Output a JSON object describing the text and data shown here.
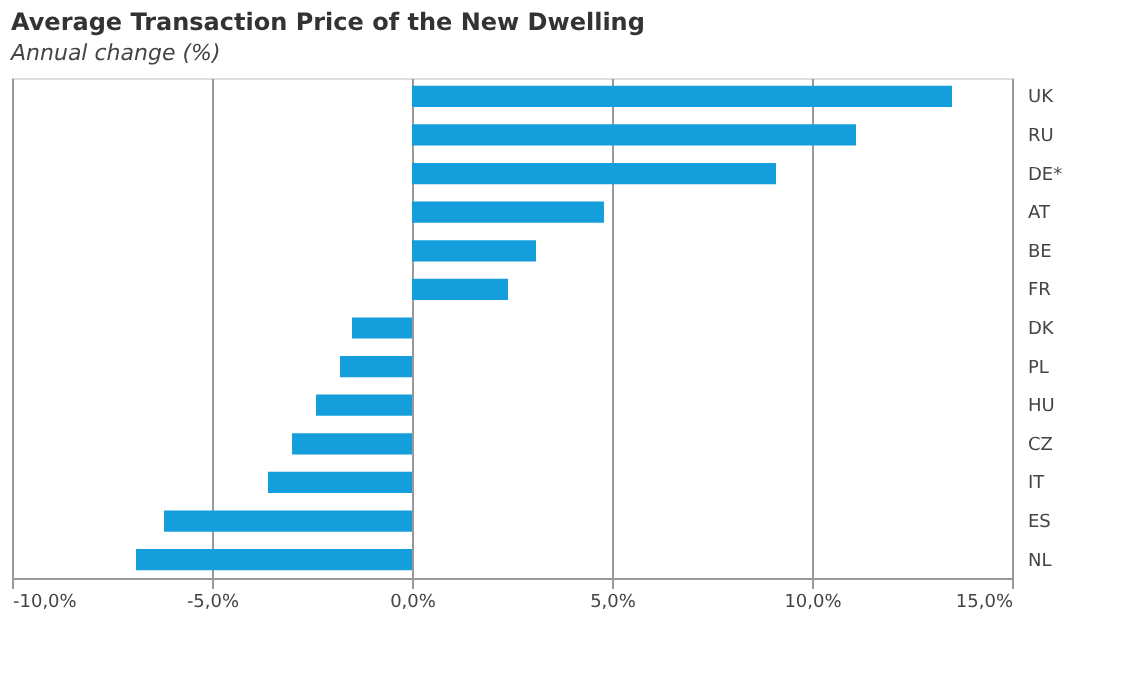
{
  "chart_data": {
    "type": "bar",
    "orientation": "horizontal",
    "title": "Average Transaction Price of the New Dwelling",
    "subtitle": "Annual change (%)",
    "categories": [
      "UK",
      "RU",
      "DE*",
      "AT",
      "BE",
      "FR",
      "DK",
      "PL",
      "HU",
      "CZ",
      "IT",
      "ES",
      "NL"
    ],
    "values": [
      13.5,
      11.1,
      9.1,
      4.8,
      3.1,
      2.4,
      -1.5,
      -1.8,
      -2.4,
      -3.0,
      -3.6,
      -6.2,
      -6.9
    ],
    "color": "#149fdc",
    "xlim": [
      -10,
      15
    ],
    "xticks": [
      {
        "value": -10,
        "label": "-10,0%"
      },
      {
        "value": -5,
        "label": "-5,0%"
      },
      {
        "value": 0,
        "label": "0,0%"
      },
      {
        "value": 5,
        "label": "5,0%"
      },
      {
        "value": 10,
        "label": "10,0%"
      },
      {
        "value": 15,
        "label": "15,0%"
      }
    ],
    "grid": "x"
  }
}
